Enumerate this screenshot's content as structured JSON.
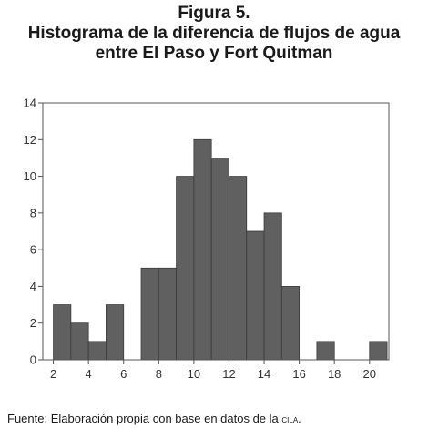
{
  "figure": {
    "label": "Figura 5.",
    "title_line1": "Histograma de la diferencia de flujos de agua",
    "title_line2": "entre El Paso y Fort Quitman"
  },
  "source": {
    "prefix": "Fuente: Elaboración propia con base en datos de la ",
    "org": "cila",
    "suffix": "."
  },
  "chart_data": {
    "type": "bar",
    "subtype": "histogram",
    "title": "",
    "xlabel": "",
    "ylabel": "",
    "bin_width": 1,
    "bins": [
      {
        "x0": 2,
        "x1": 3,
        "count": 3
      },
      {
        "x0": 3,
        "x1": 4,
        "count": 2
      },
      {
        "x0": 4,
        "x1": 5,
        "count": 1
      },
      {
        "x0": 5,
        "x1": 6,
        "count": 3
      },
      {
        "x0": 6,
        "x1": 7,
        "count": 0
      },
      {
        "x0": 7,
        "x1": 8,
        "count": 5
      },
      {
        "x0": 8,
        "x1": 9,
        "count": 5
      },
      {
        "x0": 9,
        "x1": 10,
        "count": 10
      },
      {
        "x0": 10,
        "x1": 11,
        "count": 12
      },
      {
        "x0": 11,
        "x1": 12,
        "count": 11
      },
      {
        "x0": 12,
        "x1": 13,
        "count": 10
      },
      {
        "x0": 13,
        "x1": 14,
        "count": 7
      },
      {
        "x0": 14,
        "x1": 15,
        "count": 8
      },
      {
        "x0": 15,
        "x1": 16,
        "count": 4
      },
      {
        "x0": 16,
        "x1": 17,
        "count": 0
      },
      {
        "x0": 17,
        "x1": 18,
        "count": 1
      },
      {
        "x0": 18,
        "x1": 19,
        "count": 0
      },
      {
        "x0": 19,
        "x1": 20,
        "count": 0
      },
      {
        "x0": 20,
        "x1": 21,
        "count": 1
      }
    ],
    "xlim": [
      1.4,
      21.1
    ],
    "ylim": [
      0,
      14
    ],
    "xticks": [
      2,
      4,
      6,
      8,
      10,
      12,
      14,
      16,
      18,
      20
    ],
    "yticks": [
      0,
      2,
      4,
      6,
      8,
      10,
      12,
      14
    ],
    "grid": false,
    "legend": "none",
    "bar_color": "#606060",
    "bar_edge_color": "#3a3a3a"
  }
}
